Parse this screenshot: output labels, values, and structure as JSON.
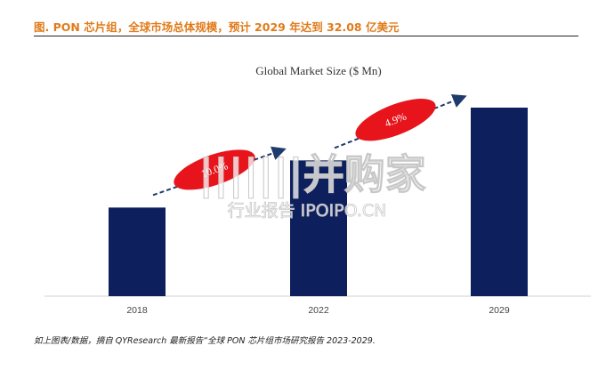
{
  "figure_title": "图.  PON 芯片组，全球市场总体规模，预计 2029 年达到 32.08 亿美元",
  "source_note": "如上图表/数据，摘自 QYResearch 最新报告“全球 PON 芯片组市场研究报告 2023-2029.",
  "watermark": {
    "line1": "|||||||并购家",
    "line2": "行业报告 IPOIPO.CN"
  },
  "colors": {
    "title": "#e07b1a",
    "bar": "#0d1f5c",
    "ellipse": "#e8141c",
    "arrow": "#1f3b6e"
  },
  "chart_data": {
    "type": "bar",
    "title": "Global Market Size ($ Mn)",
    "categories": [
      "2018",
      "2022",
      "2029"
    ],
    "values": [
      0.47,
      0.72,
      1.0
    ],
    "value_note_shown": "relative bar heights (scale not printed)",
    "annotations": [
      "10.0%",
      "4.9%"
    ],
    "grid": false,
    "legend": "none"
  }
}
